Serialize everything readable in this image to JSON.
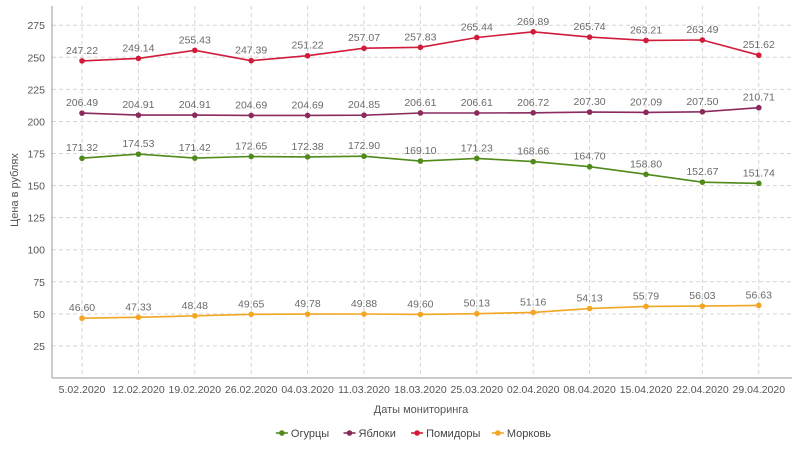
{
  "chart_data": {
    "type": "line",
    "title": "",
    "xlabel": "Даты мониторинга",
    "ylabel": "Цена в рублях",
    "ylim": [
      0,
      290
    ],
    "yticks": [
      25,
      50,
      75,
      100,
      125,
      150,
      175,
      200,
      225,
      250,
      275
    ],
    "grid": true,
    "legend_position": "bottom-center",
    "categories": [
      "5.02.2020",
      "12.02.2020",
      "19.02.2020",
      "26.02.2020",
      "04.03.2020",
      "11.03.2020",
      "18.03.2020",
      "25.03.2020",
      "02.04.2020",
      "08.04.2020",
      "15.04.2020",
      "22.04.2020",
      "29.04.2020"
    ],
    "series": [
      {
        "name": "Огурцы",
        "color": "#4f8a1b",
        "values": [
          171.32,
          174.53,
          171.42,
          172.65,
          172.38,
          172.9,
          169.1,
          171.23,
          168.66,
          164.7,
          158.8,
          152.67,
          151.74
        ],
        "labels": [
          "171.32",
          "174.53",
          "171.42",
          "172.65",
          "172.38",
          "172.90",
          "169.10",
          "171.23",
          "168.66",
          "164.70",
          "158.80",
          "152.67",
          "151.74"
        ]
      },
      {
        "name": "Яблоки",
        "color": "#8b2a5e",
        "values": [
          206.49,
          204.91,
          204.91,
          204.69,
          204.69,
          204.85,
          206.61,
          206.61,
          206.72,
          207.3,
          207.09,
          207.5,
          210.71
        ],
        "labels": [
          "206.49",
          "204.91",
          "204.91",
          "204.69",
          "204.69",
          "204.85",
          "206.61",
          "206.61",
          "206.72",
          "207.30",
          "207.09",
          "207.50",
          "210.71"
        ]
      },
      {
        "name": "Помидоры",
        "color": "#d01c3a",
        "values": [
          247.22,
          249.14,
          255.43,
          247.39,
          251.22,
          257.07,
          257.83,
          265.44,
          269.89,
          265.74,
          263.21,
          263.49,
          251.62
        ],
        "labels": [
          "247.22",
          "249.14",
          "255.43",
          "247.39",
          "251.22",
          "257.07",
          "257.83",
          "265.44",
          "269.89",
          "265.74",
          "263.21",
          "263.49",
          "251.62"
        ]
      },
      {
        "name": "Морковь",
        "color": "#f2a623",
        "values": [
          46.6,
          47.33,
          48.48,
          49.65,
          49.78,
          49.88,
          49.6,
          50.13,
          51.16,
          54.13,
          55.79,
          56.03,
          56.63
        ],
        "labels": [
          "46.60",
          "47.33",
          "48.48",
          "49.65",
          "49.78",
          "49.88",
          "49.60",
          "50.13",
          "51.16",
          "54.13",
          "55.79",
          "56.03",
          "56.63"
        ]
      }
    ]
  }
}
